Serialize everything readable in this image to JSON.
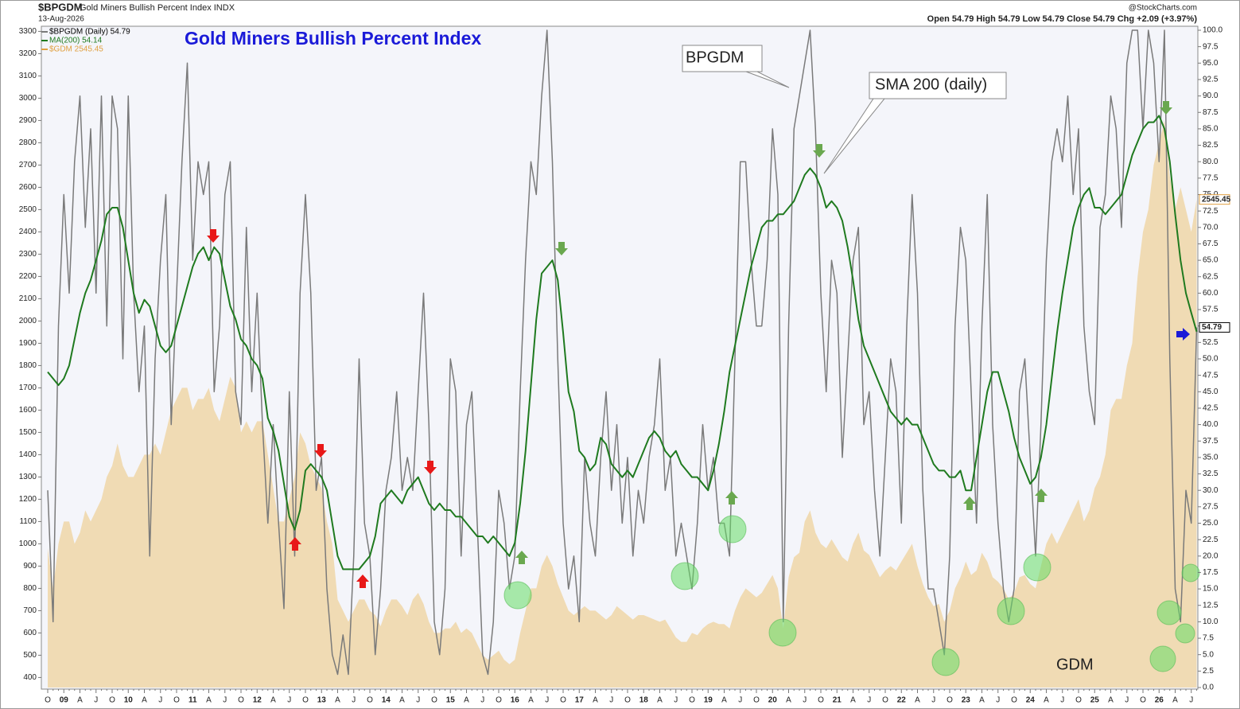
{
  "chart_data": {
    "type": "line",
    "symbol": "$BPGDM",
    "description": "Gold Miners Bullish Percent Index INDX",
    "date": "13-Aug-2026",
    "source": "@StockCharts.com",
    "quote": "Open 54.79  High 54.79  Low 54.79  Close 54.79  Chg +2.09 (+3.97%)",
    "title": "Gold Miners Bullish Percent Index",
    "annotations": [
      "BPGDM",
      "SMA 200 (daily)",
      "GDM"
    ],
    "categories": [
      "O",
      null,
      null,
      "09",
      null,
      null,
      "A",
      null,
      null,
      "J",
      null,
      null,
      "O",
      null,
      null,
      "10",
      null,
      null,
      "A",
      null,
      null,
      "J",
      null,
      null,
      "O",
      null,
      null,
      "11",
      null,
      null,
      "A",
      null,
      null,
      "J",
      null,
      null,
      "O",
      null,
      null,
      "12",
      null,
      null,
      "A",
      null,
      null,
      "J",
      null,
      null,
      "O",
      null,
      null,
      "13",
      null,
      null,
      "A",
      null,
      null,
      "J",
      null,
      null,
      "O",
      null,
      null,
      "14",
      null,
      null,
      "A",
      null,
      null,
      "J",
      null,
      null,
      "O",
      null,
      null,
      "15",
      null,
      null,
      "A",
      null,
      null,
      "J",
      null,
      null,
      "O",
      null,
      null,
      "16",
      null,
      null,
      "A",
      null,
      null,
      "J",
      null,
      null,
      "O",
      null,
      null,
      "17",
      null,
      null,
      "A",
      null,
      null,
      "J",
      null,
      null,
      "O",
      null,
      null,
      "18",
      null,
      null,
      "A",
      null,
      null,
      "J",
      null,
      null,
      "O",
      null,
      null,
      "19",
      null,
      null,
      "A",
      null,
      null,
      "J",
      null,
      null,
      "O",
      null,
      null,
      "20",
      null,
      null,
      "A",
      null,
      null,
      "J",
      null,
      null,
      "O",
      null,
      null,
      "21",
      null,
      null,
      "A",
      null,
      null,
      "J",
      null,
      null,
      "O",
      null,
      null,
      "22",
      null,
      null,
      "A",
      null,
      null,
      "J",
      null,
      null,
      "O",
      null,
      null,
      "23",
      null,
      null,
      "A",
      null,
      null,
      "J",
      null,
      null,
      "O",
      null,
      null,
      "24",
      null,
      null,
      "A",
      null,
      null,
      "J",
      null,
      null,
      "O",
      null,
      null,
      "25",
      null,
      null,
      "A",
      null,
      null,
      "J",
      null,
      null,
      "O",
      null,
      null,
      "26",
      null,
      null,
      "A",
      null,
      null,
      "J",
      null
    ],
    "series": [
      {
        "name": "$GDM 2545.45",
        "kind": "area",
        "color": "#f0dbb4",
        "text_color": "#e0a040",
        "values": [
          980,
          800,
          1000,
          1100,
          1100,
          1000,
          1050,
          1150,
          1100,
          1150,
          1200,
          1300,
          1350,
          1450,
          1350,
          1300,
          1300,
          1350,
          1400,
          1400,
          1450,
          1400,
          1500,
          1600,
          1650,
          1700,
          1700,
          1600,
          1650,
          1650,
          1700,
          1600,
          1550,
          1650,
          1750,
          1700,
          1500,
          1550,
          1500,
          1550,
          1550,
          1400,
          1250,
          1100,
          1100,
          1200,
          1300,
          1500,
          1450,
          1350,
          1300,
          1250,
          1100,
          1000,
          750,
          700,
          650,
          700,
          750,
          750,
          700,
          680,
          630,
          700,
          750,
          750,
          720,
          680,
          750,
          780,
          730,
          650,
          600,
          600,
          620,
          620,
          650,
          600,
          620,
          600,
          550,
          500,
          480,
          500,
          520,
          480,
          460,
          480,
          600,
          700,
          800,
          800,
          900,
          950,
          900,
          820,
          760,
          700,
          680,
          700,
          720,
          700,
          700,
          680,
          660,
          680,
          720,
          700,
          680,
          660,
          680,
          680,
          670,
          660,
          650,
          660,
          620,
          580,
          560,
          560,
          600,
          590,
          620,
          640,
          650,
          640,
          640,
          620,
          700,
          760,
          800,
          780,
          760,
          780,
          820,
          860,
          800,
          620,
          850,
          940,
          960,
          1100,
          1150,
          1050,
          1000,
          980,
          1020,
          980,
          940,
          920,
          1000,
          1050,
          970,
          950,
          900,
          850,
          880,
          900,
          880,
          920,
          960,
          1000,
          900,
          820,
          760,
          720,
          730,
          650,
          700,
          800,
          850,
          920,
          860,
          880,
          960,
          920,
          850,
          830,
          800,
          750,
          780,
          850,
          860,
          820,
          800,
          900,
          1000,
          1050,
          1000,
          1050,
          1100,
          1150,
          1200,
          1100,
          1150,
          1250,
          1300,
          1400,
          1600,
          1650,
          1650,
          1800,
          1900,
          2200,
          2400,
          2500,
          2700,
          2800,
          2900,
          2650,
          2500,
          2600,
          2500,
          2400,
          2545.45
        ]
      },
      {
        "name": "$BPGDM (Daily) 54.79",
        "kind": "line",
        "axis": "y2",
        "color": "#7a7a7a",
        "text_color": "#000000",
        "values": [
          30,
          10,
          55,
          75,
          60,
          80,
          90,
          70,
          85,
          60,
          90,
          55,
          90,
          85,
          50,
          90,
          60,
          45,
          55,
          20,
          50,
          65,
          75,
          40,
          60,
          80,
          95,
          65,
          80,
          75,
          80,
          45,
          55,
          75,
          80,
          45,
          40,
          70,
          45,
          60,
          40,
          25,
          40,
          25,
          12,
          45,
          20,
          60,
          75,
          60,
          30,
          35,
          15,
          5,
          2,
          8,
          2,
          20,
          50,
          25,
          20,
          5,
          15,
          30,
          35,
          45,
          30,
          35,
          30,
          45,
          60,
          40,
          10,
          5,
          15,
          50,
          45,
          20,
          40,
          45,
          25,
          5,
          2,
          10,
          30,
          25,
          15,
          20,
          45,
          65,
          80,
          75,
          90,
          100,
          80,
          50,
          25,
          15,
          20,
          10,
          35,
          25,
          20,
          35,
          45,
          30,
          40,
          25,
          35,
          20,
          30,
          25,
          35,
          40,
          50,
          30,
          35,
          20,
          25,
          20,
          15,
          25,
          40,
          30,
          35,
          25,
          25,
          20,
          50,
          80,
          80,
          65,
          55,
          55,
          65,
          85,
          75,
          10,
          55,
          85,
          90,
          95,
          100,
          85,
          60,
          45,
          65,
          60,
          35,
          50,
          65,
          70,
          40,
          45,
          30,
          20,
          35,
          50,
          45,
          25,
          55,
          75,
          60,
          30,
          15,
          15,
          10,
          5,
          20,
          55,
          70,
          65,
          45,
          25,
          55,
          75,
          40,
          25,
          15,
          10,
          15,
          45,
          50,
          35,
          20,
          40,
          65,
          80,
          85,
          80,
          90,
          75,
          85,
          55,
          45,
          40,
          70,
          75,
          90,
          85,
          70,
          95,
          100,
          100,
          85,
          100,
          95,
          80,
          100,
          50,
          15,
          10,
          30,
          25,
          54.79
        ]
      },
      {
        "name": "MA(200) 54.14",
        "kind": "line",
        "axis": "y2",
        "color": "#1f7a1f",
        "text_color": "#1f7a1f",
        "values": [
          48,
          47,
          46,
          47,
          49,
          53,
          57,
          60,
          62,
          65,
          68,
          72,
          73,
          73,
          70,
          65,
          60,
          57,
          59,
          58,
          55,
          52,
          51,
          52,
          55,
          58,
          61,
          64,
          66,
          67,
          65,
          67,
          66,
          62,
          58,
          56,
          53,
          52,
          50,
          49,
          47,
          41,
          39,
          36,
          31,
          26,
          24,
          27,
          33,
          34,
          33,
          32,
          30,
          25,
          20,
          18,
          18,
          18,
          18,
          19,
          20,
          23,
          28,
          29,
          30,
          29,
          28,
          30,
          31,
          32,
          30,
          28,
          27,
          28,
          27,
          27,
          26,
          26,
          25,
          24,
          23,
          23,
          22,
          23,
          22,
          21,
          20,
          22,
          28,
          36,
          46,
          56,
          63,
          64,
          65,
          62,
          54,
          45,
          42,
          36,
          35,
          33,
          34,
          38,
          37,
          34,
          33,
          32,
          33,
          32,
          34,
          36,
          38,
          39,
          38,
          36,
          35,
          36,
          34,
          33,
          32,
          32,
          31,
          30,
          33,
          37,
          42,
          48,
          52,
          56,
          60,
          64,
          67,
          70,
          71,
          71,
          72,
          72,
          73,
          74,
          76,
          78,
          79,
          78,
          76,
          73,
          74,
          73,
          71,
          67,
          62,
          56,
          52,
          50,
          48,
          46,
          44,
          42,
          41,
          40,
          41,
          40,
          40,
          38,
          36,
          34,
          33,
          33,
          32,
          32,
          33,
          30,
          30,
          35,
          40,
          45,
          48,
          48,
          45,
          42,
          38,
          35,
          33,
          31,
          32,
          35,
          40,
          47,
          54,
          60,
          65,
          70,
          73,
          75,
          76,
          73,
          73,
          72,
          73,
          74,
          75,
          78,
          81,
          83,
          85,
          86,
          86,
          87,
          85,
          80,
          72,
          65,
          60,
          57,
          54.14
        ]
      }
    ],
    "ylim": [
      355,
      3305
    ],
    "yticks": [
      400,
      500,
      600,
      700,
      800,
      900,
      1000,
      1100,
      1200,
      1300,
      1400,
      1500,
      1600,
      1700,
      1800,
      1900,
      2000,
      2100,
      2200,
      2300,
      2400,
      2500,
      2600,
      2700,
      2800,
      2900,
      3000,
      3100,
      3200,
      3300
    ],
    "y2lim": [
      0,
      100
    ],
    "y2ticks": [
      {
        "value": 0,
        "label": "0.0"
      },
      {
        "value": 2.5,
        "label": "2.5"
      },
      {
        "value": 5,
        "label": "5.0"
      },
      {
        "value": 7.5,
        "label": "7.5"
      },
      {
        "value": 10,
        "label": "10.0"
      },
      {
        "value": 12.5,
        "label": "12.5"
      },
      {
        "value": 15,
        "label": "15.0"
      },
      {
        "value": 17.5,
        "label": "17.5"
      },
      {
        "value": 20,
        "label": "20.0"
      },
      {
        "value": 22.5,
        "label": "22.5"
      },
      {
        "value": 25,
        "label": "25.0"
      },
      {
        "value": 27.5,
        "label": "27.5"
      },
      {
        "value": 30,
        "label": "30.0"
      },
      {
        "value": 32.5,
        "label": "32.5"
      },
      {
        "value": 35,
        "label": "35.0"
      },
      {
        "value": 37.5,
        "label": "37.5"
      },
      {
        "value": 40,
        "label": "40.0"
      },
      {
        "value": 42.5,
        "label": "42.5"
      },
      {
        "value": 45,
        "label": "45.0"
      },
      {
        "value": 47.5,
        "label": "47.5"
      },
      {
        "value": 50,
        "label": "50.0"
      },
      {
        "value": 52.5,
        "label": "52.5"
      },
      {
        "value": 55,
        "label": "55.0"
      },
      {
        "value": 57.5,
        "label": "57.5"
      },
      {
        "value": 60,
        "label": "60.0"
      },
      {
        "value": 62.5,
        "label": "62.5"
      },
      {
        "value": 65,
        "label": "65.0"
      },
      {
        "value": 67.5,
        "label": "67.5"
      },
      {
        "value": 70,
        "label": "70.0"
      },
      {
        "value": 72.5,
        "label": "72.5"
      },
      {
        "value": 75,
        "label": "75.0"
      },
      {
        "value": 77.5,
        "label": "77.5"
      },
      {
        "value": 80,
        "label": "80.0"
      },
      {
        "value": 82.5,
        "label": "82.5"
      },
      {
        "value": 85,
        "label": "85.0"
      },
      {
        "value": 87.5,
        "label": "87.5"
      },
      {
        "value": 90,
        "label": "90.0"
      },
      {
        "value": 92.5,
        "label": "92.5"
      },
      {
        "value": 95,
        "label": "95.0"
      },
      {
        "value": 97.5,
        "label": "97.5"
      },
      {
        "value": 100,
        "label": "100.0"
      }
    ],
    "grid": false
  }
}
